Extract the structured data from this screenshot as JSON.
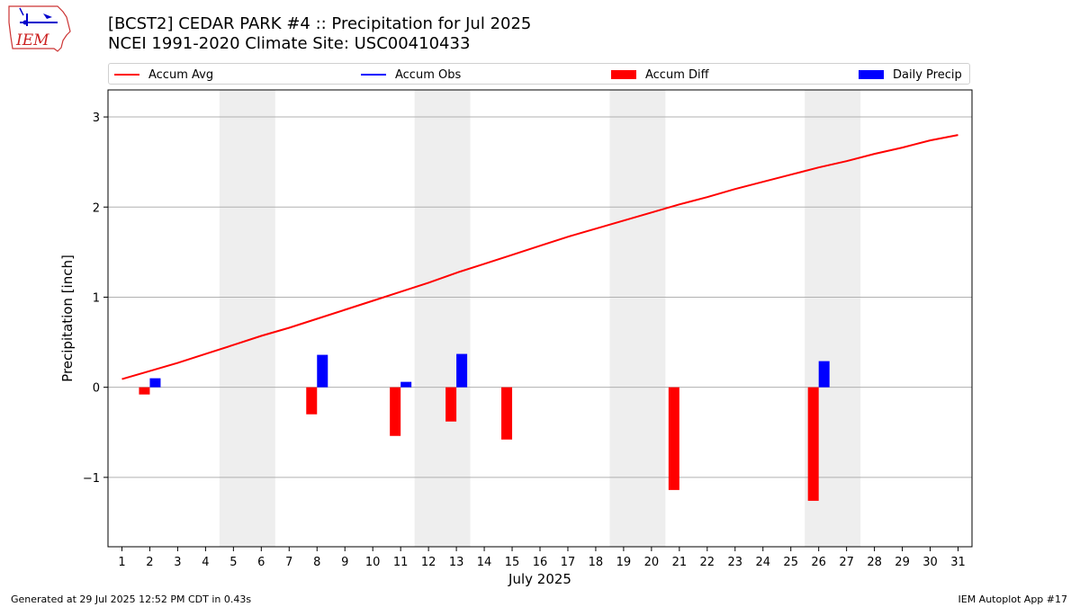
{
  "header": {
    "title_line1": "[BCST2] CEDAR PARK #4 :: Precipitation for Jul 2025",
    "title_line2": "NCEI 1991-2020 Climate Site: USC00410433",
    "logo_text": "IEM"
  },
  "legend": {
    "items": [
      {
        "label": "Accum Avg",
        "kind": "line",
        "color": "#ff0000"
      },
      {
        "label": "Accum Obs",
        "kind": "line",
        "color": "#0000ff"
      },
      {
        "label": "Accum Diff",
        "kind": "box",
        "color": "#ff0000"
      },
      {
        "label": "Daily Precip",
        "kind": "box",
        "color": "#0000ff"
      }
    ]
  },
  "footer": {
    "left": "Generated at 29 Jul 2025 12:52 PM CDT in 0.43s",
    "right": "IEM Autoplot App #17"
  },
  "chart_data": {
    "type": "bar",
    "xlabel": "July 2025",
    "ylabel": "Precipitation [inch]",
    "x": [
      1,
      2,
      3,
      4,
      5,
      6,
      7,
      8,
      9,
      10,
      11,
      12,
      13,
      14,
      15,
      16,
      17,
      18,
      19,
      20,
      21,
      22,
      23,
      24,
      25,
      26,
      27,
      28,
      29,
      30,
      31
    ],
    "ylim": [
      -1.77,
      3.3
    ],
    "yticks": [
      -1,
      0,
      1,
      2,
      3
    ],
    "ytick_labels": [
      "−1",
      "0",
      "1",
      "2",
      "3"
    ],
    "grid": true,
    "weekend_shading": [
      [
        5,
        6
      ],
      [
        12,
        13
      ],
      [
        19,
        20
      ],
      [
        26,
        27
      ]
    ],
    "series": [
      {
        "name": "Accum Avg",
        "kind": "line",
        "color": "#ff0000",
        "values": [
          0.09,
          0.18,
          0.27,
          0.37,
          0.47,
          0.57,
          0.66,
          0.76,
          0.86,
          0.96,
          1.06,
          1.16,
          1.27,
          1.37,
          1.47,
          1.57,
          1.67,
          1.76,
          1.85,
          1.94,
          2.03,
          2.11,
          2.2,
          2.28,
          2.36,
          2.44,
          2.51,
          2.59,
          2.66,
          2.74,
          2.8
        ]
      },
      {
        "name": "Accum Diff",
        "kind": "bar",
        "color": "#ff0000",
        "values": [
          null,
          -0.08,
          null,
          null,
          null,
          null,
          null,
          -0.3,
          null,
          null,
          -0.54,
          null,
          -0.38,
          null,
          -0.58,
          null,
          null,
          null,
          null,
          null,
          -1.14,
          null,
          null,
          null,
          null,
          -1.26,
          null,
          null,
          null,
          null,
          null
        ]
      },
      {
        "name": "Daily Precip",
        "kind": "bar",
        "color": "#0000ff",
        "values": [
          null,
          0.1,
          null,
          null,
          null,
          null,
          null,
          0.36,
          null,
          null,
          0.06,
          null,
          0.37,
          null,
          null,
          null,
          null,
          null,
          null,
          null,
          null,
          null,
          null,
          null,
          null,
          0.29,
          null,
          null,
          null,
          null,
          null
        ]
      }
    ]
  }
}
